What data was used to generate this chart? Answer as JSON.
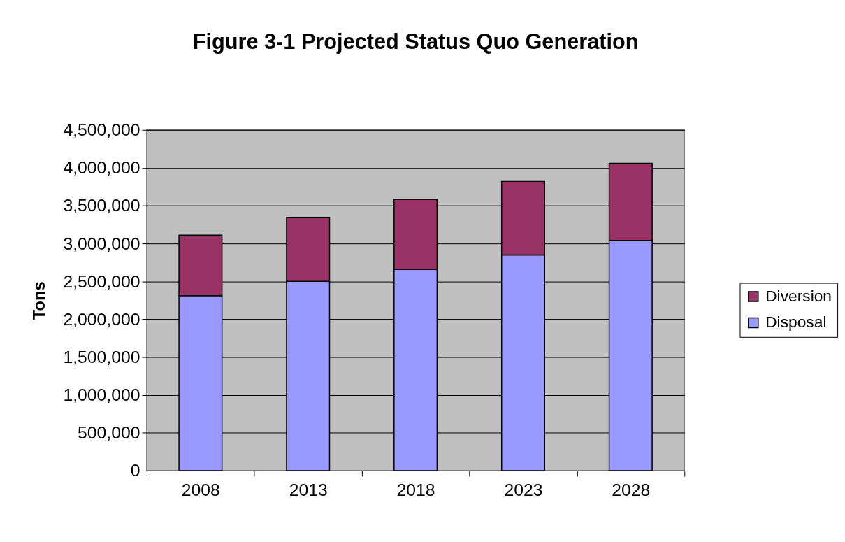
{
  "chart_data": {
    "type": "bar",
    "title": "Figure 3-1 Projected Status Quo Generation",
    "ylabel": "Tons",
    "categories": [
      "2008",
      "2013",
      "2018",
      "2023",
      "2028"
    ],
    "stacked": true,
    "series": [
      {
        "name": "Disposal",
        "color": "#9999ff",
        "values": [
          2310000,
          2500000,
          2660000,
          2850000,
          3040000
        ]
      },
      {
        "name": "Diversion",
        "color": "#993366",
        "values": [
          800000,
          840000,
          920000,
          970000,
          1020000
        ]
      }
    ],
    "ylim": [
      0,
      4500000
    ],
    "yticks": [
      0,
      {
        "value": 500000,
        "label": "500,000"
      },
      {
        "value": 1000000,
        "label": "1,000,000"
      },
      {
        "value": 1500000,
        "label": "1,500,000"
      },
      {
        "value": 2000000,
        "label": "2,000,000"
      },
      {
        "value": 2500000,
        "label": "2,500,000"
      },
      {
        "value": 3000000,
        "label": "3,000,000"
      },
      {
        "value": 3500000,
        "label": "3,500,000"
      },
      {
        "value": 4000000,
        "label": "4,000,000"
      },
      {
        "value": 4500000,
        "label": "4,500,000"
      }
    ],
    "grid": "y",
    "legend": "right"
  }
}
